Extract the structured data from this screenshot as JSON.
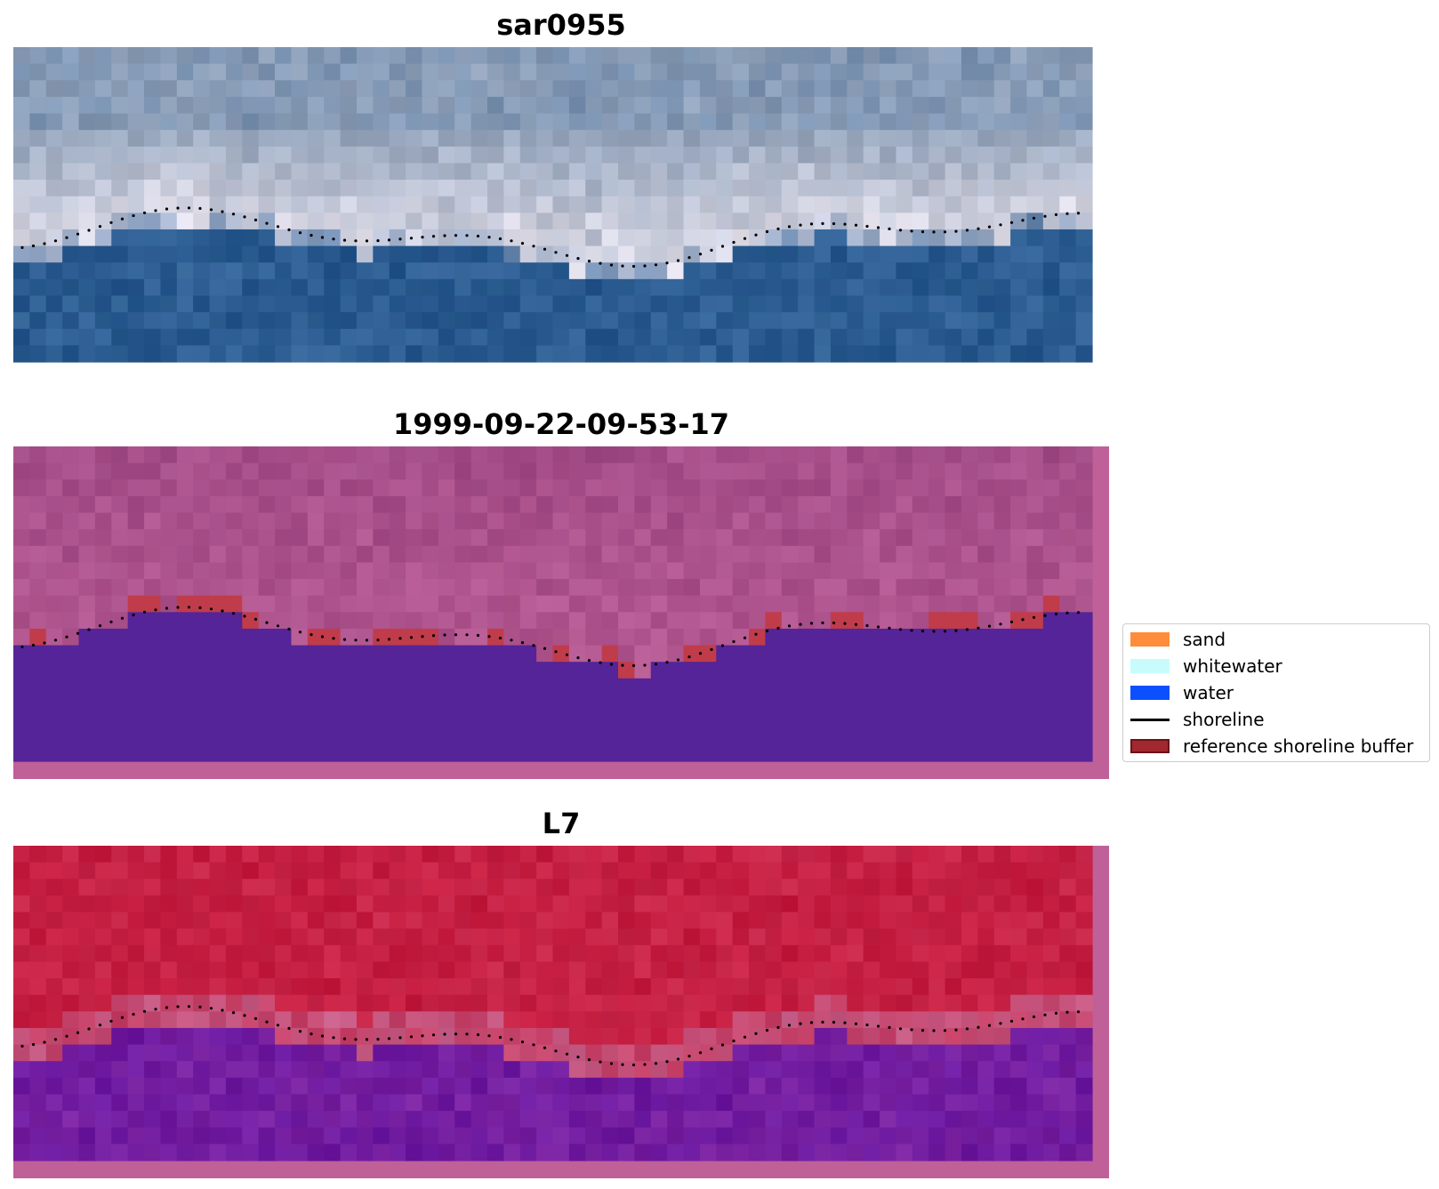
{
  "panels": [
    {
      "title": "sar0955"
    },
    {
      "title": "1999-09-22-09-53-17"
    },
    {
      "title": "L7"
    }
  ],
  "legend": {
    "entries": [
      {
        "label": "sand",
        "color": "#ff8c3a",
        "kind": "patch"
      },
      {
        "label": "whitewater",
        "color": "#c8fcfc",
        "kind": "patch"
      },
      {
        "label": "water",
        "color": "#0a50ff",
        "kind": "patch"
      },
      {
        "label": "shoreline",
        "color": "#000000",
        "kind": "line"
      },
      {
        "label": "reference shoreline buffer",
        "color": "#a0282e",
        "kind": "patch"
      }
    ]
  },
  "colors": {
    "rgb_sky": "#8fa0b8",
    "rgb_white_band": "#e6e2ec",
    "rgb_water": "#2a5a90",
    "classified_land": "#a04a86",
    "classified_water": "#542498",
    "classified_frame": "#bf6098",
    "buffer_red": "#c03c4a",
    "mndwi_land": "#c41b3e",
    "mndwi_transition": "#c45e88",
    "mndwi_water": "#7a22a0"
  }
}
